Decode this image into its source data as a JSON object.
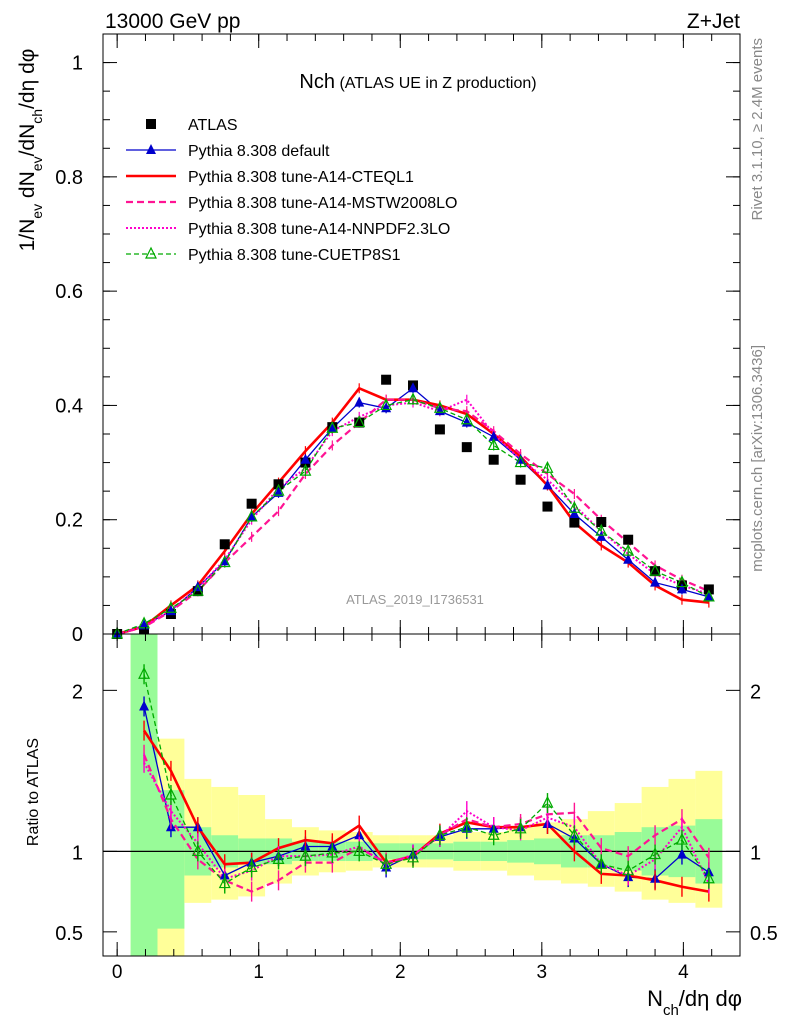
{
  "header": {
    "left": "13000 GeV pp",
    "right": "Z+Jet"
  },
  "side_labels": {
    "right_top": "Rivet 3.1.10, ≥ 2.4M events",
    "right_bottom": "mcplots.cern.ch [arXiv:1306.3436]"
  },
  "watermark": "ATLAS_2019_I1736531",
  "colors": {
    "atlas": "#000000",
    "default": "#0000cc",
    "cteql1": "#ff0000",
    "mstw": "#ff1493",
    "nnpdf": "#ff00cc",
    "cuetp": "#00aa00",
    "band_inner": "#98fb98",
    "band_outer": "#ffff99"
  },
  "chart_data": [
    {
      "type": "line",
      "title": "Nch",
      "subtitle": "(ATLAS UE in Z production)",
      "xlabel": "N_ch/dη dφ",
      "ylabel": "1/N_ev dN_ev/dN_ch/dη dφ",
      "xlim": [
        -0.1,
        4.4
      ],
      "ylim": [
        0,
        1.05
      ],
      "yticks": [
        0,
        0.2,
        0.4,
        0.6,
        0.8,
        1
      ],
      "ytick_labels": [
        "0",
        "0.2",
        "0.4",
        "0.6",
        "0.8",
        "1"
      ],
      "legend_position": "top-left",
      "x": [
        0.0,
        0.19,
        0.38,
        0.57,
        0.76,
        0.95,
        1.14,
        1.33,
        1.52,
        1.71,
        1.9,
        2.09,
        2.28,
        2.47,
        2.66,
        2.85,
        3.04,
        3.23,
        3.42,
        3.61,
        3.8,
        3.99,
        4.18
      ],
      "series": [
        {
          "name": "ATLAS",
          "key": "atlas",
          "style": "square",
          "values": [
            0.0,
            0.005,
            0.035,
            0.075,
            0.157,
            0.228,
            0.262,
            0.3,
            0.362,
            0.37,
            0.445,
            0.435,
            0.358,
            0.327,
            0.305,
            0.27,
            0.223,
            0.195,
            0.196,
            0.165,
            0.11,
            0.085,
            0.078
          ]
        },
        {
          "name": "Pythia 8.308 default",
          "key": "default",
          "style": "solid-triangle",
          "values": [
            0.0,
            0.015,
            0.04,
            0.082,
            0.127,
            0.205,
            0.247,
            0.305,
            0.36,
            0.405,
            0.395,
            0.43,
            0.39,
            0.37,
            0.345,
            0.305,
            0.26,
            0.21,
            0.17,
            0.13,
            0.09,
            0.078,
            0.065
          ]
        },
        {
          "name": "Pythia 8.308 tune-A14-CTEQL1",
          "key": "cteql1",
          "style": "thick-solid",
          "values": [
            0.0,
            0.013,
            0.05,
            0.085,
            0.145,
            0.21,
            0.265,
            0.32,
            0.37,
            0.43,
            0.41,
            0.41,
            0.4,
            0.385,
            0.35,
            0.31,
            0.26,
            0.195,
            0.155,
            0.125,
            0.085,
            0.06,
            0.055
          ]
        },
        {
          "name": "Pythia 8.308 tune-A14-MSTW2008LO",
          "key": "mstw",
          "style": "dashed",
          "values": [
            0.0,
            0.012,
            0.04,
            0.075,
            0.125,
            0.17,
            0.215,
            0.28,
            0.33,
            0.37,
            0.41,
            0.41,
            0.395,
            0.39,
            0.355,
            0.315,
            0.28,
            0.245,
            0.2,
            0.16,
            0.12,
            0.095,
            0.075
          ]
        },
        {
          "name": "Pythia 8.308 tune-A14-NNPDF2.3LO",
          "key": "nnpdf",
          "style": "dotted",
          "values": [
            0.0,
            0.013,
            0.042,
            0.08,
            0.13,
            0.2,
            0.255,
            0.29,
            0.355,
            0.38,
            0.4,
            0.405,
            0.39,
            0.41,
            0.35,
            0.305,
            0.27,
            0.225,
            0.18,
            0.14,
            0.105,
            0.085,
            0.07
          ]
        },
        {
          "name": "Pythia 8.308 tune-CUETP8S1",
          "key": "cuetp",
          "style": "dashed-open-triangle",
          "values": [
            0.0,
            0.018,
            0.045,
            0.075,
            0.125,
            0.205,
            0.25,
            0.285,
            0.36,
            0.37,
            0.4,
            0.41,
            0.395,
            0.375,
            0.33,
            0.3,
            0.29,
            0.22,
            0.18,
            0.145,
            0.11,
            0.09,
            0.065
          ]
        }
      ]
    },
    {
      "type": "line",
      "ylabel": "Ratio to ATLAS",
      "xlabel": "N_ch/dη dφ",
      "xlim": [
        -0.1,
        4.4
      ],
      "ylim": [
        0.35,
        2.35
      ],
      "yticks": [
        0.5,
        1,
        2
      ],
      "ytick_labels": [
        "0.5",
        "1",
        "2"
      ],
      "xticks": [
        0,
        1,
        2,
        3,
        4
      ],
      "xtick_labels": [
        "0",
        "1",
        "2",
        "3",
        "4"
      ],
      "x": [
        0.19,
        0.38,
        0.57,
        0.76,
        0.95,
        1.14,
        1.33,
        1.52,
        1.71,
        1.9,
        2.09,
        2.28,
        2.47,
        2.66,
        2.85,
        3.04,
        3.23,
        3.42,
        3.61,
        3.8,
        3.99,
        4.18
      ],
      "band_inner": [
        [
          0.35,
          2.5
        ],
        [
          0.52,
          1.38
        ],
        [
          0.85,
          1.15
        ],
        [
          0.9,
          1.1
        ],
        [
          0.92,
          1.08
        ],
        [
          0.92,
          1.08
        ],
        [
          0.94,
          1.06
        ],
        [
          0.94,
          1.06
        ],
        [
          0.94,
          1.06
        ],
        [
          0.95,
          1.05
        ],
        [
          0.95,
          1.05
        ],
        [
          0.95,
          1.05
        ],
        [
          0.94,
          1.06
        ],
        [
          0.94,
          1.06
        ],
        [
          0.93,
          1.07
        ],
        [
          0.92,
          1.08
        ],
        [
          0.9,
          1.1
        ],
        [
          0.9,
          1.1
        ],
        [
          0.88,
          1.12
        ],
        [
          0.85,
          1.15
        ],
        [
          0.84,
          1.16
        ],
        [
          0.8,
          1.2
        ]
      ],
      "band_outer": [
        [
          0.35,
          2.5
        ],
        [
          0.35,
          1.7
        ],
        [
          0.68,
          1.45
        ],
        [
          0.7,
          1.4
        ],
        [
          0.72,
          1.35
        ],
        [
          0.8,
          1.2
        ],
        [
          0.85,
          1.15
        ],
        [
          0.87,
          1.13
        ],
        [
          0.88,
          1.12
        ],
        [
          0.9,
          1.1
        ],
        [
          0.9,
          1.1
        ],
        [
          0.9,
          1.1
        ],
        [
          0.88,
          1.12
        ],
        [
          0.88,
          1.12
        ],
        [
          0.85,
          1.15
        ],
        [
          0.82,
          1.18
        ],
        [
          0.8,
          1.2
        ],
        [
          0.78,
          1.25
        ],
        [
          0.75,
          1.3
        ],
        [
          0.7,
          1.4
        ],
        [
          0.68,
          1.45
        ],
        [
          0.65,
          1.5
        ]
      ],
      "series": [
        {
          "name": "Pythia 8.308 default",
          "key": "default",
          "values": [
            1.9,
            1.15,
            1.15,
            0.85,
            0.93,
            0.97,
            1.03,
            1.03,
            1.1,
            0.9,
            0.98,
            1.09,
            1.14,
            1.14,
            1.15,
            1.17,
            1.08,
            0.92,
            0.84,
            0.83,
            0.98,
            0.87
          ]
        },
        {
          "name": "Pythia 8.308 tune-A14-CTEQL1",
          "key": "cteql1",
          "values": [
            1.75,
            1.5,
            1.15,
            0.92,
            0.93,
            1.02,
            1.07,
            1.05,
            1.16,
            0.93,
            0.97,
            1.11,
            1.18,
            1.15,
            1.15,
            1.17,
            1.0,
            0.86,
            0.85,
            0.82,
            0.78,
            0.75
          ]
        },
        {
          "name": "Pythia 8.308 tune-A14-MSTW2008LO",
          "key": "mstw",
          "values": [
            1.6,
            1.2,
            0.95,
            0.82,
            0.75,
            0.82,
            0.93,
            0.93,
            1.02,
            0.93,
            0.97,
            1.1,
            1.2,
            1.15,
            1.17,
            1.23,
            1.24,
            1.02,
            0.97,
            1.1,
            1.2,
            0.96
          ]
        },
        {
          "name": "Pythia 8.308 tune-A14-NNPDF2.3LO",
          "key": "nnpdf",
          "values": [
            1.55,
            1.25,
            1.05,
            0.83,
            0.88,
            0.97,
            0.97,
            0.98,
            1.03,
            0.92,
            0.98,
            1.09,
            1.25,
            1.15,
            1.13,
            1.21,
            1.15,
            0.92,
            0.85,
            0.95,
            1.15,
            0.8
          ]
        },
        {
          "name": "Pythia 8.308 tune-CUETP8S1",
          "key": "cuetp",
          "values": [
            2.1,
            1.35,
            1.0,
            0.8,
            0.9,
            0.95,
            0.97,
            0.99,
            1.0,
            0.92,
            0.96,
            1.1,
            1.15,
            1.1,
            1.14,
            1.3,
            1.1,
            0.92,
            0.88,
            0.98,
            1.07,
            0.83
          ]
        }
      ]
    }
  ]
}
